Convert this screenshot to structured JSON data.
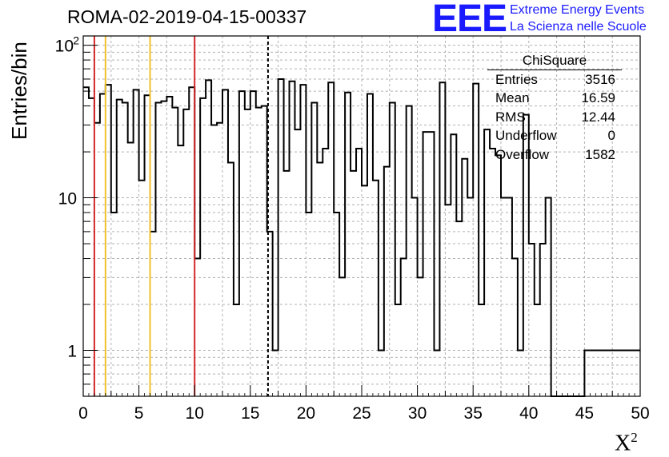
{
  "title": "ROMA-02-2019-04-15-00337",
  "logo": {
    "text": "EEE",
    "line1": "Extreme Energy Events",
    "line2": "La Scienza nelle Scuole",
    "color": "#1a1aff"
  },
  "stats": {
    "name": "ChiSquare",
    "rows": [
      {
        "label": "Entries",
        "value": "3516"
      },
      {
        "label": "Mean",
        "value": "16.59"
      },
      {
        "label": "RMS",
        "value": "12.44"
      },
      {
        "label": "Underflow",
        "value": "0"
      },
      {
        "label": "Overflow",
        "value": "1582"
      }
    ]
  },
  "chart_data": {
    "type": "histogram",
    "xlabel": "X",
    "xlabel_superscript": "2",
    "ylabel": "Entries/bin",
    "xlim": [
      0,
      50
    ],
    "ylim": [
      0.5,
      115
    ],
    "yscale": "log",
    "bin_width": 0.5,
    "xticks": [
      "0",
      "5",
      "10",
      "15",
      "20",
      "25",
      "30",
      "35",
      "40",
      "45",
      "50"
    ],
    "yticks": [
      {
        "value": 1,
        "label": "1"
      },
      {
        "value": 10,
        "label": "10"
      },
      {
        "value": 100,
        "label": "10",
        "sup": "2"
      }
    ],
    "grid": true,
    "vlines": [
      {
        "x": 1,
        "color": "#d62728",
        "style": "solid"
      },
      {
        "x": 2,
        "color": "#f2c12e",
        "style": "solid"
      },
      {
        "x": 6,
        "color": "#f2c12e",
        "style": "solid"
      },
      {
        "x": 10,
        "color": "#d62728",
        "style": "solid"
      },
      {
        "x": 16.59,
        "color": "#000000",
        "style": "dashed"
      }
    ],
    "values": [
      53,
      45,
      31,
      48,
      55,
      8,
      44,
      42,
      23,
      51,
      13,
      47,
      6,
      42,
      43,
      46,
      39,
      22,
      38,
      53,
      4,
      45,
      59,
      30,
      31,
      51,
      17,
      2,
      50,
      38,
      50,
      39,
      40,
      6,
      1,
      60,
      15,
      58,
      28,
      55,
      8,
      42,
      17,
      21,
      57,
      8,
      3,
      49,
      15,
      21,
      12,
      48,
      13,
      1,
      16,
      42,
      2,
      4,
      40,
      10,
      3,
      27,
      27,
      1,
      57,
      9,
      26,
      7,
      18,
      10,
      56,
      2,
      28,
      21,
      19,
      10,
      10,
      4,
      1,
      35,
      5,
      2,
      5,
      10,
      0,
      0,
      0,
      0,
      0,
      0,
      1,
      1,
      1,
      1,
      1,
      1,
      1,
      1,
      1,
      1
    ]
  }
}
